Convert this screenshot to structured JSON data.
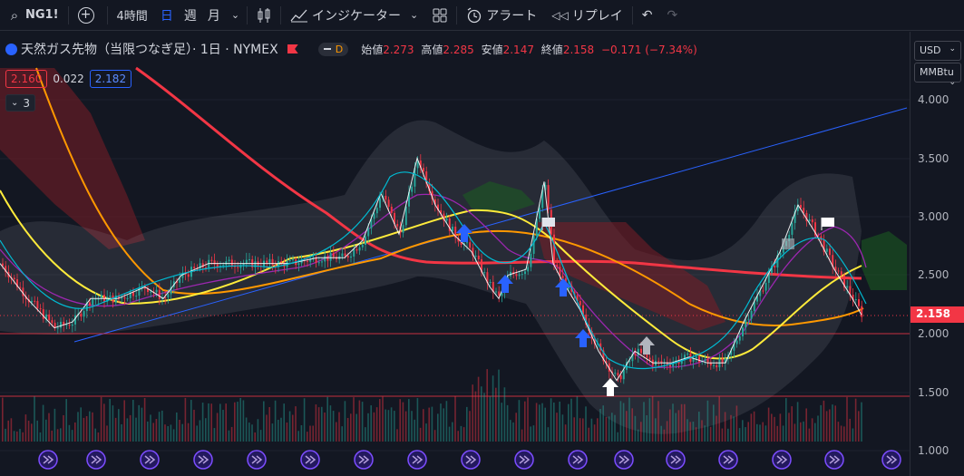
{
  "toolbar": {
    "symbol": "NG1!",
    "interval": "4時間",
    "day": "日",
    "week": "週",
    "month": "月",
    "indicators": "インジケーター",
    "alert": "アラート",
    "replay": "リプレイ"
  },
  "legend": {
    "title": "天然ガス先物（当限つなぎ足）· 1日 · NYMEX",
    "badge": "D",
    "open_label": "始値",
    "open": "2.273",
    "high_label": "高値",
    "high": "2.285",
    "low_label": "安値",
    "low": "2.147",
    "close_label": "終値",
    "close": "2.158",
    "change": "−0.171 (−7.34%)",
    "bid": "2.160",
    "spread": "0.022",
    "ask": "2.182",
    "collapsed_count": "3"
  },
  "price_scale": {
    "currency": "USD",
    "unit": "MMBtu",
    "ticks": [
      "4.000",
      "3.500",
      "3.000",
      "2.500",
      "2.000",
      "1.500",
      "1.000"
    ],
    "last_price": "2.158"
  },
  "colors": {
    "up": "#26a69a",
    "down": "#f23645",
    "ma_red": "#f23645",
    "ma_orange": "#ff9800",
    "ma_yellow": "#ffeb3b",
    "trend_line": "#2962ff"
  },
  "chart_data": {
    "type": "line",
    "ylim": [
      0.9,
      4.2
    ],
    "price_x": [
      0,
      30,
      60,
      80,
      100,
      130,
      160,
      180,
      200,
      230,
      260,
      290,
      320,
      350,
      380,
      400,
      420,
      440,
      460,
      480,
      500,
      520,
      540,
      550,
      560,
      580,
      600,
      610,
      620,
      640,
      660,
      680,
      700,
      720,
      740,
      760,
      780,
      800,
      820,
      840,
      860,
      880,
      900,
      920,
      940,
      950
    ],
    "price_y": [
      2.6,
      2.3,
      2.05,
      2.1,
      2.3,
      2.3,
      2.4,
      2.3,
      2.5,
      2.6,
      2.6,
      2.6,
      2.6,
      2.65,
      2.65,
      2.8,
      3.2,
      2.85,
      3.5,
      3.1,
      2.85,
      2.7,
      2.4,
      2.3,
      2.5,
      2.55,
      3.3,
      2.6,
      2.45,
      2.2,
      1.85,
      1.6,
      1.85,
      1.75,
      1.75,
      1.8,
      1.75,
      1.75,
      2.1,
      2.4,
      2.7,
      3.1,
      2.85,
      2.55,
      2.3,
      2.16
    ]
  }
}
